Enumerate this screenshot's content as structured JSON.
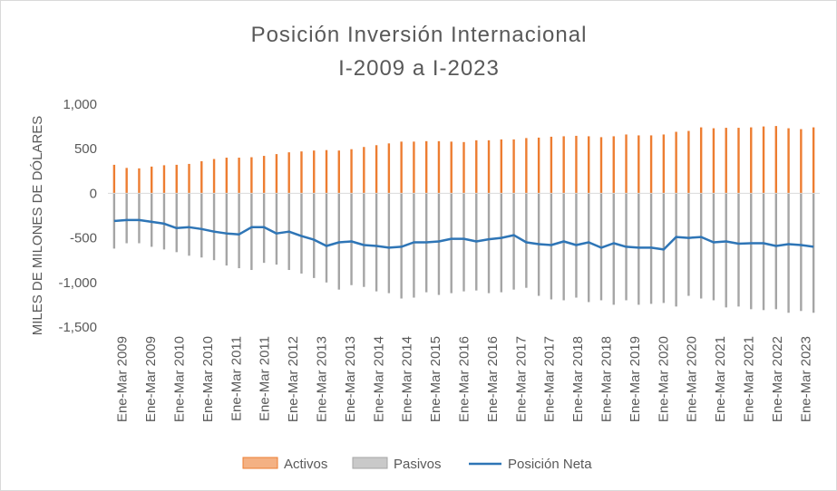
{
  "chart_data": {
    "type": "bar",
    "title": "Posición  Inversión  Internacional",
    "subtitle": "I-2009 a I-2023",
    "ylabel": "MILES DE MILONES DE DÓLARES",
    "ylim": [
      -1500,
      1000
    ],
    "yticks": [
      1000,
      500,
      0,
      -500,
      -1000,
      -1500
    ],
    "ytick_labels": [
      "1,000",
      "500",
      "0",
      "-500",
      "-1,000",
      "-1,500"
    ],
    "x_tick_labels": [
      "Ene-Mar 2009",
      "Ene-Mar 2009",
      "Ene-Mar 2010",
      "Ene-Mar 2010",
      "Ene-Mar 2011",
      "Ene-Mar 2011",
      "Ene-Mar 2012",
      "Ene-Mar 2013",
      "Ene-Mar 2013",
      "Ene-Mar 2014",
      "Ene-Mar 2014",
      "Ene-Mar 2015",
      "Ene-Mar 2016",
      "Ene-Mar 2016",
      "Ene-Mar 2017",
      "Ene-Mar 2017",
      "Ene-Mar 2018",
      "Ene-Mar 2018",
      "Ene-Mar 2019",
      "Ene-Mar 2020",
      "Ene-Mar 2020",
      "Ene-Mar 2021",
      "Ene-Mar 2021",
      "Ene-Mar 2022",
      "Ene-Mar 2023"
    ],
    "series": [
      {
        "name": "Activos",
        "kind": "bar",
        "color": "#ed7d31",
        "values": [
          320,
          285,
          280,
          300,
          315,
          320,
          330,
          360,
          385,
          400,
          400,
          405,
          420,
          440,
          460,
          470,
          480,
          485,
          480,
          495,
          520,
          540,
          560,
          580,
          580,
          585,
          585,
          580,
          575,
          595,
          595,
          605,
          605,
          620,
          625,
          635,
          640,
          645,
          640,
          630,
          640,
          660,
          650,
          650,
          660,
          690,
          700,
          740,
          730,
          735,
          735,
          740,
          750,
          755,
          730,
          720,
          740
        ]
      },
      {
        "name": "Pasivos",
        "kind": "bar",
        "color": "#a5a5a5",
        "values": [
          -620,
          -560,
          -560,
          -600,
          -630,
          -660,
          -700,
          -720,
          -750,
          -810,
          -840,
          -860,
          -780,
          -800,
          -860,
          -900,
          -950,
          -1000,
          -1080,
          -1030,
          -1050,
          -1100,
          -1120,
          -1180,
          -1170,
          -1110,
          -1140,
          -1120,
          -1100,
          -1090,
          -1120,
          -1110,
          -1080,
          -1060,
          -1150,
          -1190,
          -1200,
          -1170,
          -1220,
          -1200,
          -1250,
          -1200,
          -1250,
          -1240,
          -1230,
          -1270,
          -1150,
          -1180,
          -1200,
          -1280,
          -1270,
          -1300,
          -1310,
          -1300,
          -1340,
          -1320,
          -1340
        ]
      },
      {
        "name": "Posición Neta",
        "kind": "line",
        "color": "#2e75b6",
        "values": [
          -310,
          -300,
          -300,
          -320,
          -340,
          -390,
          -380,
          -400,
          -430,
          -450,
          -460,
          -380,
          -380,
          -450,
          -430,
          -480,
          -520,
          -590,
          -550,
          -540,
          -580,
          -590,
          -610,
          -600,
          -550,
          -550,
          -540,
          -510,
          -510,
          -540,
          -515,
          -500,
          -470,
          -550,
          -570,
          -580,
          -540,
          -580,
          -550,
          -610,
          -560,
          -600,
          -610,
          -610,
          -630,
          -490,
          -500,
          -490,
          -550,
          -540,
          -565,
          -560,
          -560,
          -590,
          -570,
          -580,
          -600
        ]
      }
    ],
    "legend": {
      "position": "bottom",
      "entries": [
        "Activos",
        "Pasivos",
        "Posición Neta"
      ]
    },
    "grid": false
  }
}
